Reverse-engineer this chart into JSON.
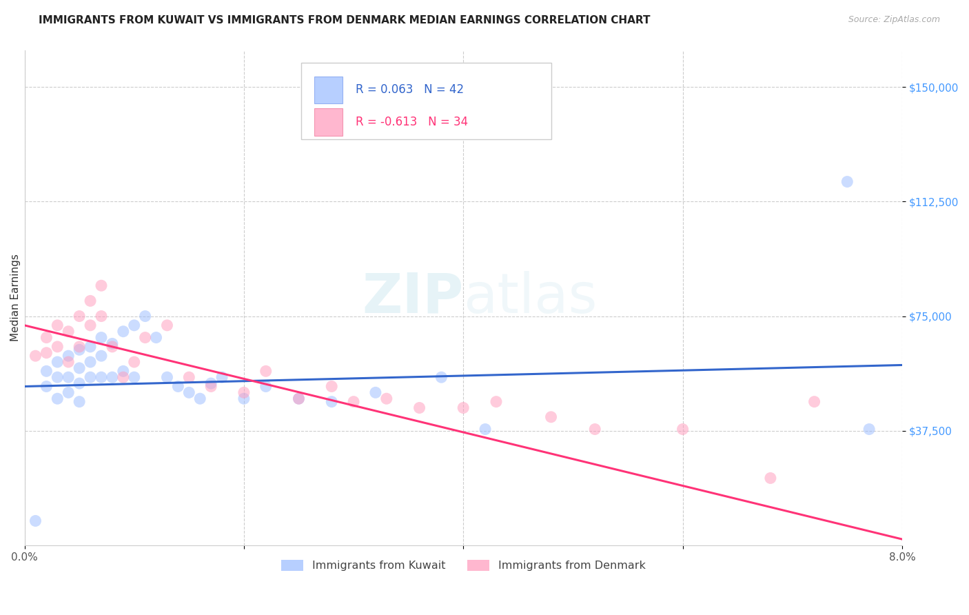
{
  "title": "IMMIGRANTS FROM KUWAIT VS IMMIGRANTS FROM DENMARK MEDIAN EARNINGS CORRELATION CHART",
  "source": "Source: ZipAtlas.com",
  "ylabel": "Median Earnings",
  "xlim": [
    0.0,
    0.08
  ],
  "ylim": [
    0,
    162000
  ],
  "yticks": [
    37500,
    75000,
    112500,
    150000
  ],
  "ytick_labels": [
    "$37,500",
    "$75,000",
    "$112,500",
    "$150,000"
  ],
  "xticks": [
    0.0,
    0.02,
    0.04,
    0.06,
    0.08
  ],
  "xtick_labels": [
    "0.0%",
    "",
    "",
    "",
    "8.0%"
  ],
  "legend_entries": [
    {
      "label": "Immigrants from Kuwait",
      "R": "0.063",
      "N": "42",
      "color": "#99bbff"
    },
    {
      "label": "Immigrants from Denmark",
      "R": "-0.613",
      "N": "34",
      "color": "#ff99bb"
    }
  ],
  "watermark": "ZIPatlas",
  "kuwait_scatter_x": [
    0.001,
    0.002,
    0.002,
    0.003,
    0.003,
    0.003,
    0.004,
    0.004,
    0.004,
    0.005,
    0.005,
    0.005,
    0.005,
    0.006,
    0.006,
    0.006,
    0.007,
    0.007,
    0.007,
    0.008,
    0.008,
    0.009,
    0.009,
    0.01,
    0.01,
    0.011,
    0.012,
    0.013,
    0.014,
    0.015,
    0.016,
    0.017,
    0.018,
    0.02,
    0.022,
    0.025,
    0.028,
    0.032,
    0.038,
    0.042,
    0.075,
    0.077
  ],
  "kuwait_scatter_y": [
    8000,
    52000,
    57000,
    60000,
    55000,
    48000,
    62000,
    55000,
    50000,
    64000,
    58000,
    53000,
    47000,
    65000,
    60000,
    55000,
    68000,
    62000,
    55000,
    66000,
    55000,
    70000,
    57000,
    72000,
    55000,
    75000,
    68000,
    55000,
    52000,
    50000,
    48000,
    53000,
    55000,
    48000,
    52000,
    48000,
    47000,
    50000,
    55000,
    38000,
    119000,
    38000
  ],
  "denmark_scatter_x": [
    0.001,
    0.002,
    0.002,
    0.003,
    0.003,
    0.004,
    0.004,
    0.005,
    0.005,
    0.006,
    0.006,
    0.007,
    0.007,
    0.008,
    0.009,
    0.01,
    0.011,
    0.013,
    0.015,
    0.017,
    0.02,
    0.022,
    0.025,
    0.028,
    0.03,
    0.033,
    0.036,
    0.04,
    0.043,
    0.048,
    0.052,
    0.06,
    0.068,
    0.072
  ],
  "denmark_scatter_y": [
    62000,
    68000,
    63000,
    72000,
    65000,
    70000,
    60000,
    75000,
    65000,
    80000,
    72000,
    85000,
    75000,
    65000,
    55000,
    60000,
    68000,
    72000,
    55000,
    52000,
    50000,
    57000,
    48000,
    52000,
    47000,
    48000,
    45000,
    45000,
    47000,
    42000,
    38000,
    38000,
    22000,
    47000
  ],
  "kuwait_line_x": [
    0.0,
    0.08
  ],
  "kuwait_line_y": [
    52000,
    59000
  ],
  "denmark_line_x": [
    0.0,
    0.08
  ],
  "denmark_line_y": [
    72000,
    2000
  ],
  "blue_color": "#99bbff",
  "pink_color": "#ff99bb",
  "blue_line_color": "#3366cc",
  "pink_line_color": "#ff3377",
  "scatter_size": 150,
  "scatter_alpha": 0.5,
  "background_color": "#ffffff",
  "grid_color": "#cccccc",
  "title_fontsize": 11,
  "axis_label_fontsize": 11,
  "tick_fontsize": 11,
  "ytick_color": "#4499ff"
}
